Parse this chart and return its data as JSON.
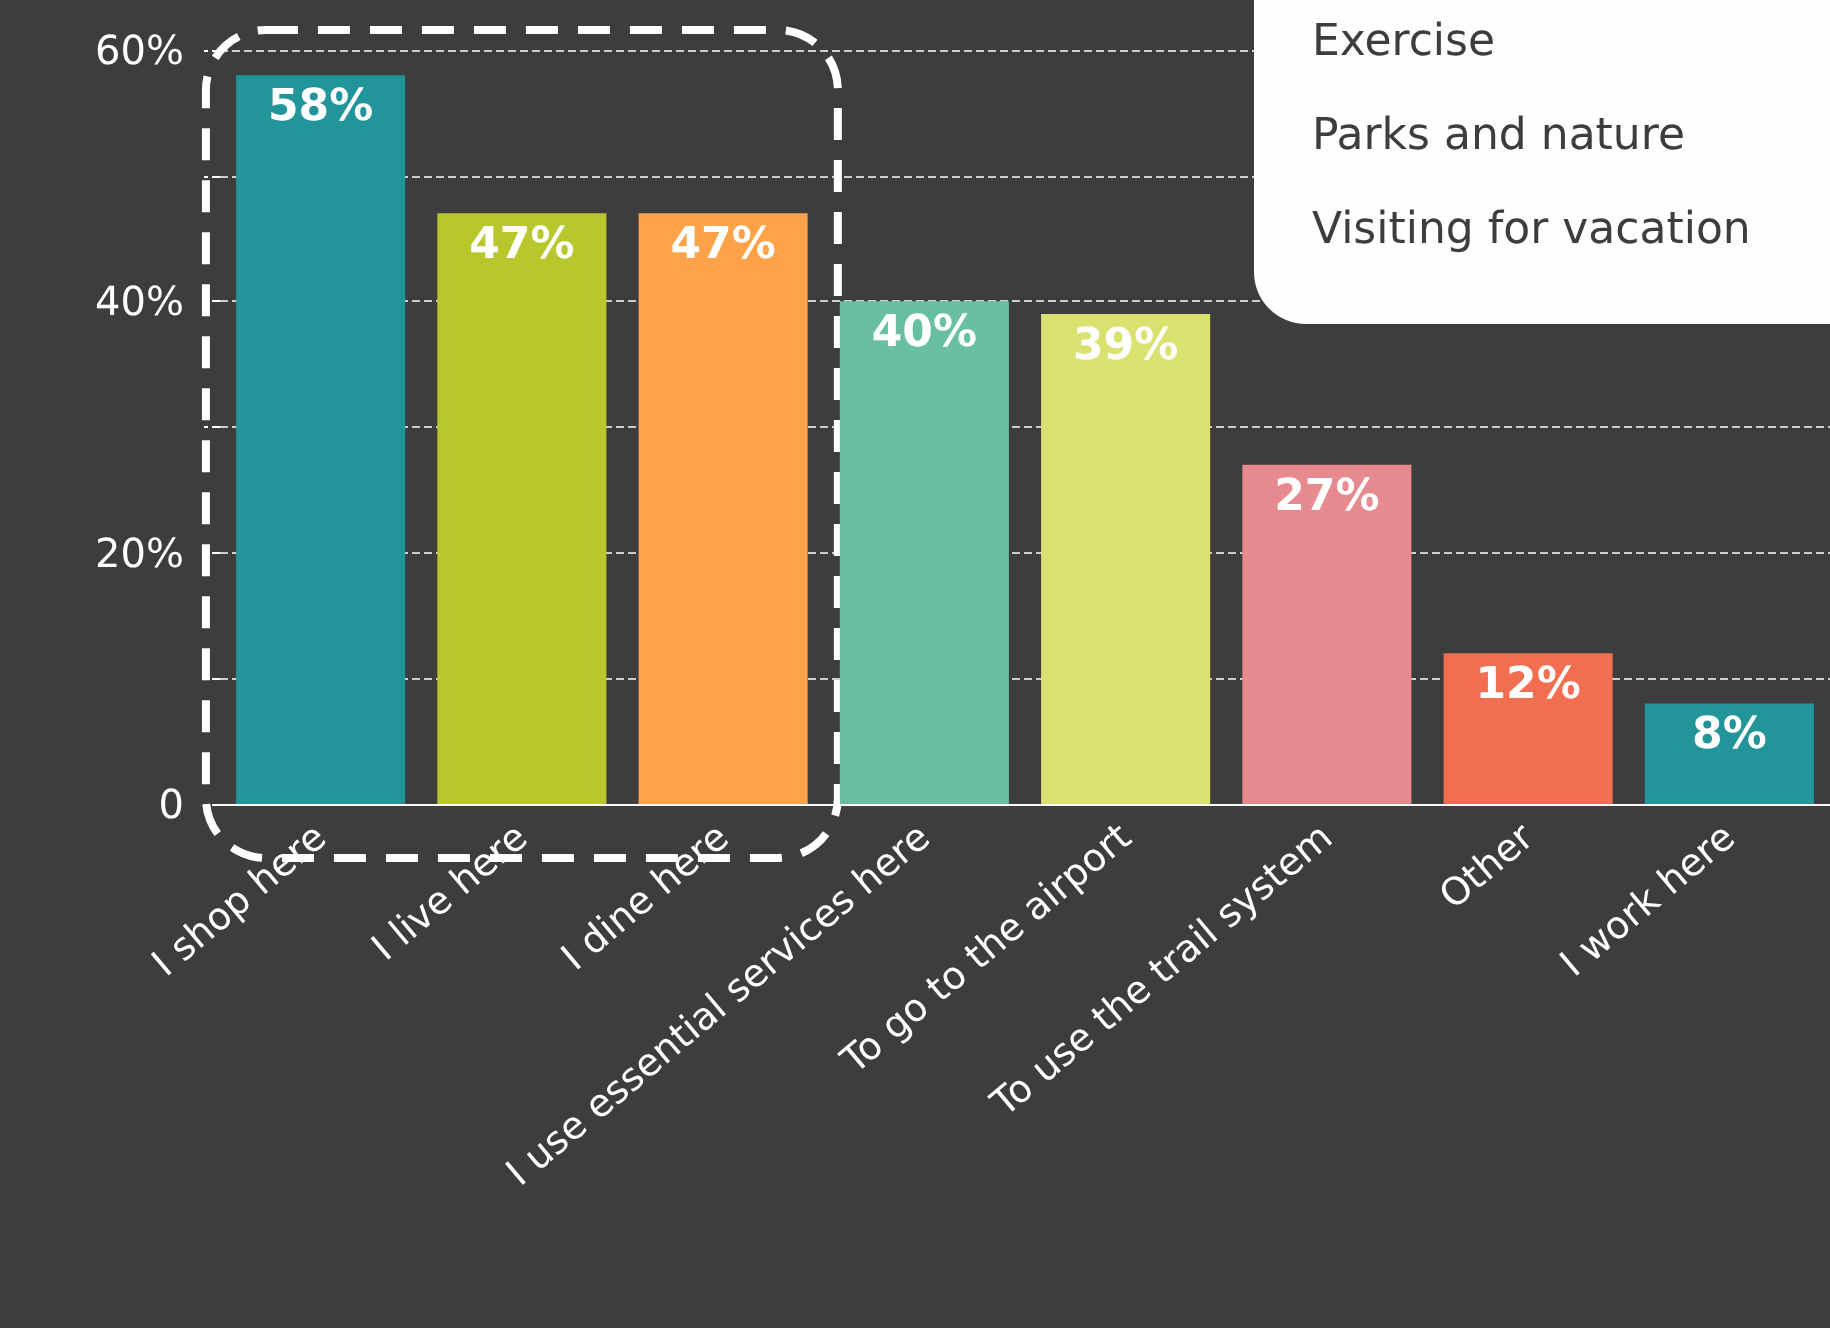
{
  "chart_data": {
    "type": "bar",
    "categories": [
      "I shop here",
      "I live here",
      "I dine here",
      "I use essential services here",
      "To go to the airport",
      "To use the trail system",
      "Other",
      "I work here"
    ],
    "values": [
      58,
      47,
      47,
      40,
      39,
      27,
      12,
      8
    ],
    "colors": [
      "#22959b",
      "#b8c72c",
      "#fda247",
      "#68bfa3",
      "#d9e26f",
      "#e68a90",
      "#f26e51",
      "#22959b"
    ],
    "ylim": [
      0,
      60
    ],
    "yticks": [
      0,
      {
        "value": 10,
        "label": null
      },
      {
        "value": 20,
        "label": "20%"
      },
      {
        "value": 30,
        "label": null
      },
      {
        "value": 40,
        "label": "40%"
      },
      {
        "value": 50,
        "label": null
      },
      {
        "value": 60,
        "label": "60%"
      }
    ],
    "grid": "y",
    "data_labels": true,
    "value_labels": [
      "58%",
      "47%",
      "47%",
      "40%",
      "39%",
      "27%",
      "12%",
      "8%"
    ],
    "annotations": [
      "Exercise",
      "Parks and nature",
      "Visiting for vacation"
    ]
  }
}
